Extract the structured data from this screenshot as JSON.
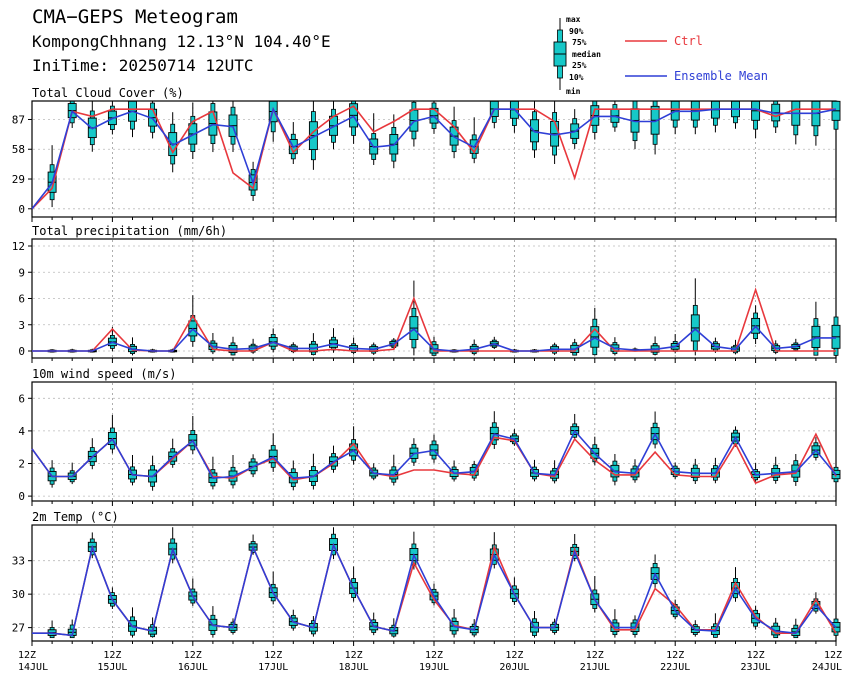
{
  "header": {
    "title": "CMA−GEPS Meteogram",
    "location": "KompongChhnang 12.13°N 104.40°E",
    "init": "IniTime: 20250714 12UTC"
  },
  "legend": {
    "box_labels": [
      "max",
      "90%",
      "75%",
      "median",
      "25%",
      "10%",
      "min"
    ],
    "ctrl": "Ctrl",
    "mean": "Ensemble Mean",
    "ctrl_color": "#e8383d",
    "mean_color": "#2f3fd6",
    "box_color": "#16c8c8"
  },
  "x_ticks": [
    {
      "hour": "12Z",
      "date": "14JUL"
    },
    {
      "hour": "12Z",
      "date": "15JUL"
    },
    {
      "hour": "12Z",
      "date": "16JUL"
    },
    {
      "hour": "12Z",
      "date": "17JUL"
    },
    {
      "hour": "12Z",
      "date": "18JUL"
    },
    {
      "hour": "12Z",
      "date": "19JUL"
    },
    {
      "hour": "12Z",
      "date": "20JUL"
    },
    {
      "hour": "12Z",
      "date": "21JUL"
    },
    {
      "hour": "12Z",
      "date": "22JUL"
    },
    {
      "hour": "12Z",
      "date": "23JUL"
    },
    {
      "hour": "12Z",
      "date": "24JUL"
    }
  ],
  "chart_data": [
    {
      "type": "line",
      "title": "Total Cloud Cover (%)",
      "x_start": "2025-07-14 12UTC",
      "x_step_hours": 6,
      "ylim": [
        -8,
        105
      ],
      "yticks": [
        0,
        29,
        58,
        87
      ],
      "series": [
        {
          "name": "Ctrl",
          "values": [
            0,
            20,
            95,
            90,
            97,
            97,
            97,
            55,
            85,
            95,
            35,
            20,
            97,
            55,
            75,
            90,
            100,
            75,
            85,
            97,
            97,
            80,
            55,
            97,
            97,
            97,
            85,
            30,
            97,
            97,
            97,
            97,
            97,
            97,
            97,
            97,
            97,
            90,
            97,
            97,
            97
          ]
        },
        {
          "name": "Ensemble Mean",
          "values": [
            0,
            25,
            95,
            78,
            88,
            95,
            88,
            62,
            72,
            82,
            80,
            25,
            97,
            60,
            70,
            80,
            90,
            60,
            62,
            85,
            90,
            70,
            60,
            97,
            97,
            75,
            72,
            75,
            90,
            90,
            85,
            85,
            95,
            95,
            97,
            97,
            97,
            93,
            93,
            93,
            97
          ]
        }
      ]
    },
    {
      "type": "line",
      "title": "Total precipitation (mm/6h)",
      "ylim": [
        -0.8,
        12.8
      ],
      "yticks": [
        0,
        3,
        6,
        9,
        12
      ],
      "series": [
        {
          "name": "Ctrl",
          "values": [
            0,
            0,
            0,
            0,
            2.5,
            0.1,
            0,
            0,
            4,
            0.2,
            0,
            0,
            1,
            0,
            0,
            0.2,
            0,
            0,
            0.2,
            6,
            0,
            0,
            0,
            0,
            0,
            0,
            0,
            0,
            2.5,
            0,
            0,
            0,
            0,
            0,
            0,
            0,
            7,
            0,
            0,
            0,
            0
          ]
        },
        {
          "name": "Ensemble Mean",
          "values": [
            0,
            0,
            0,
            0,
            1,
            0.2,
            0,
            0,
            2.5,
            0.5,
            0.2,
            0.3,
            1,
            0.3,
            0.3,
            0.8,
            0.3,
            0.2,
            0.8,
            2.5,
            0.2,
            0,
            0.2,
            0.8,
            0,
            0,
            0.2,
            0.2,
            1.5,
            0.3,
            0.1,
            0.2,
            0.5,
            2.5,
            0.5,
            0.2,
            2.8,
            0.3,
            0.5,
            1.5,
            1.5
          ]
        }
      ]
    },
    {
      "type": "line",
      "title": "10m wind speed (m/s)",
      "ylim": [
        -0.3,
        7
      ],
      "yticks": [
        0,
        2,
        4,
        6
      ],
      "series": [
        {
          "name": "Ctrl",
          "values": [
            2.9,
            1.2,
            1.2,
            2.4,
            3.5,
            1.3,
            1.2,
            2.3,
            3.4,
            1.2,
            1.1,
            1.8,
            2.3,
            1.0,
            1.2,
            2.0,
            3.2,
            1.4,
            1.2,
            1.6,
            1.6,
            1.4,
            1.3,
            3.6,
            3.4,
            1.4,
            1.2,
            3.5,
            2.2,
            1.3,
            1.3,
            2.7,
            1.3,
            1.2,
            1.2,
            3.2,
            0.8,
            1.3,
            1.4,
            3.8,
            1.2
          ]
        },
        {
          "name": "Ensemble Mean",
          "values": [
            2.9,
            1.2,
            1.2,
            2.4,
            3.5,
            1.3,
            1.2,
            2.4,
            3.4,
            1.1,
            1.2,
            1.8,
            2.4,
            1.1,
            1.2,
            2.1,
            2.8,
            1.4,
            1.3,
            2.6,
            2.8,
            1.4,
            1.5,
            3.8,
            3.5,
            1.4,
            1.3,
            4.0,
            2.6,
            1.5,
            1.4,
            3.8,
            1.5,
            1.4,
            1.4,
            3.6,
            1.3,
            1.4,
            1.5,
            2.8,
            1.3
          ]
        }
      ]
    },
    {
      "type": "line",
      "title": "2m Temp (°C)",
      "ylim": [
        25.8,
        36.2
      ],
      "yticks": [
        27,
        30,
        33
      ],
      "series": [
        {
          "name": "Ctrl",
          "values": [
            26.5,
            26.5,
            26.3,
            34.2,
            29.5,
            27.1,
            26.7,
            34.0,
            29.8,
            27.2,
            27.0,
            34.2,
            30.1,
            27.5,
            27.0,
            34.4,
            30.5,
            27.1,
            26.7,
            32.8,
            29.5,
            27.2,
            26.8,
            34.2,
            30.0,
            27.0,
            27.0,
            34.0,
            29.5,
            26.8,
            26.8,
            30.5,
            29.0,
            26.8,
            26.8,
            31.0,
            28.0,
            26.5,
            26.5,
            29.5,
            26.5
          ]
        },
        {
          "name": "Ensemble Mean",
          "values": [
            26.5,
            26.5,
            26.3,
            34.2,
            29.5,
            27.1,
            26.7,
            34.0,
            29.8,
            27.2,
            27.0,
            34.2,
            30.1,
            27.5,
            27.0,
            34.4,
            30.5,
            27.1,
            26.7,
            33.5,
            29.8,
            27.1,
            26.8,
            33.5,
            30.0,
            27.0,
            27.0,
            33.8,
            29.5,
            27.0,
            27.0,
            31.8,
            28.5,
            26.8,
            26.7,
            30.5,
            27.8,
            26.7,
            26.5,
            29.0,
            27.0
          ]
        }
      ]
    }
  ]
}
